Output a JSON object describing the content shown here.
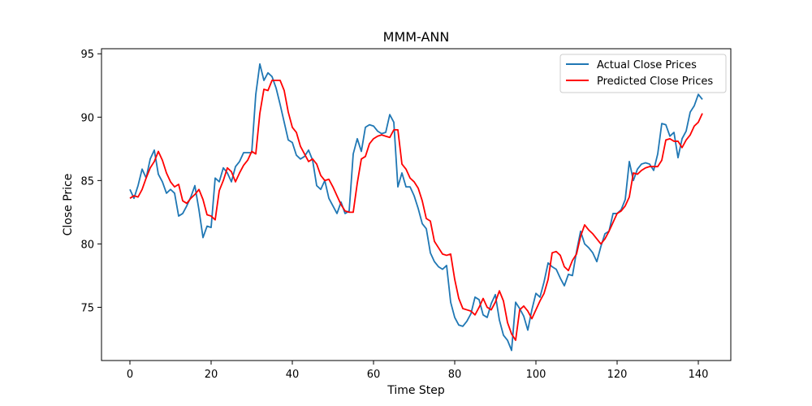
{
  "chart_data": {
    "type": "line",
    "title": "MMM-ANN",
    "xlabel": "Time Step",
    "ylabel": "Close Price",
    "xlim": [
      -7,
      148
    ],
    "ylim": [
      70.8,
      95.4
    ],
    "xticks": [
      0,
      20,
      40,
      60,
      80,
      100,
      120,
      140
    ],
    "yticks": [
      75,
      80,
      85,
      90,
      95
    ],
    "grid": false,
    "legend_position": "top-right",
    "colors": {
      "actual": "#1f77b4",
      "predicted": "#ff0000"
    },
    "x": [
      0,
      1,
      2,
      3,
      4,
      5,
      6,
      7,
      8,
      9,
      10,
      11,
      12,
      13,
      14,
      15,
      16,
      17,
      18,
      19,
      20,
      21,
      22,
      23,
      24,
      25,
      26,
      27,
      28,
      29,
      30,
      31,
      32,
      33,
      34,
      35,
      36,
      37,
      38,
      39,
      40,
      41,
      42,
      43,
      44,
      45,
      46,
      47,
      48,
      49,
      50,
      51,
      52,
      53,
      54,
      55,
      56,
      57,
      58,
      59,
      60,
      61,
      62,
      63,
      64,
      65,
      66,
      67,
      68,
      69,
      70,
      71,
      72,
      73,
      74,
      75,
      76,
      77,
      78,
      79,
      80,
      81,
      82,
      83,
      84,
      85,
      86,
      87,
      88,
      89,
      90,
      91,
      92,
      93,
      94,
      95,
      96,
      97,
      98,
      99,
      100,
      101,
      102,
      103,
      104,
      105,
      106,
      107,
      108,
      109,
      110,
      111,
      112,
      113,
      114,
      115,
      116,
      117,
      118,
      119,
      120,
      121,
      122,
      123,
      124,
      125,
      126,
      127,
      128,
      129,
      130,
      131,
      132,
      133,
      134,
      135,
      136,
      137,
      138,
      139,
      140,
      141
    ],
    "series": [
      {
        "name": "Actual Close Prices",
        "color": "#1f77b4",
        "values": [
          84.3,
          83.6,
          84.6,
          85.9,
          85.2,
          86.7,
          87.4,
          85.5,
          84.9,
          84.0,
          84.3,
          84.0,
          82.2,
          82.4,
          83.0,
          83.7,
          84.6,
          82.7,
          80.5,
          81.4,
          81.3,
          85.2,
          84.9,
          86.0,
          85.6,
          84.9,
          86.1,
          86.5,
          87.2,
          87.2,
          87.2,
          91.8,
          94.2,
          92.9,
          93.5,
          93.2,
          92.3,
          91.0,
          89.6,
          88.2,
          88.0,
          87.0,
          86.7,
          86.9,
          87.4,
          86.6,
          84.6,
          84.3,
          85.0,
          83.6,
          83.0,
          82.4,
          83.3,
          82.4,
          82.6,
          87.1,
          88.3,
          87.3,
          89.2,
          89.4,
          89.3,
          88.9,
          88.7,
          88.8,
          90.2,
          89.6,
          84.5,
          85.6,
          84.5,
          84.5,
          83.8,
          82.8,
          81.6,
          81.2,
          79.3,
          78.6,
          78.2,
          78.0,
          78.3,
          75.4,
          74.2,
          73.6,
          73.5,
          73.9,
          74.5,
          75.8,
          75.6,
          74.4,
          74.2,
          75.3,
          76.0,
          74.0,
          72.8,
          72.4,
          71.6,
          75.4,
          74.9,
          74.3,
          73.2,
          74.8,
          76.1,
          75.8,
          77.0,
          78.5,
          78.2,
          78.0,
          77.3,
          76.7,
          77.6,
          77.5,
          79.4,
          81.0,
          80.0,
          79.7,
          79.3,
          78.6,
          79.8,
          80.8,
          81.0,
          82.4,
          82.4,
          82.7,
          83.5,
          86.5,
          85.0,
          85.9,
          86.3,
          86.4,
          86.3,
          85.8,
          87.1,
          89.5,
          89.4,
          88.5,
          88.8,
          86.8,
          88.3,
          88.9,
          90.4,
          90.9,
          91.8,
          91.4
        ]
      },
      {
        "name": "Predicted Close Prices",
        "color": "#ff0000",
        "values": [
          83.6,
          83.8,
          83.7,
          84.3,
          85.2,
          86.0,
          86.5,
          87.3,
          86.6,
          85.6,
          84.9,
          84.5,
          84.7,
          83.4,
          83.2,
          83.6,
          83.9,
          84.3,
          83.5,
          82.3,
          82.2,
          81.9,
          84.2,
          85.0,
          86.0,
          85.7,
          84.9,
          85.6,
          86.2,
          86.6,
          87.3,
          87.1,
          90.3,
          92.2,
          92.1,
          92.9,
          92.9,
          92.9,
          92.1,
          90.4,
          89.2,
          88.8,
          87.7,
          87.1,
          86.5,
          86.7,
          86.3,
          85.4,
          85.0,
          85.1,
          84.5,
          83.8,
          83.1,
          82.6,
          82.5,
          82.5,
          84.8,
          86.7,
          86.9,
          87.9,
          88.3,
          88.5,
          88.6,
          88.5,
          88.4,
          89.0,
          89.0,
          86.3,
          85.9,
          85.2,
          84.9,
          84.4,
          83.4,
          82.0,
          81.8,
          80.2,
          79.7,
          79.2,
          79.1,
          79.2,
          77.2,
          75.7,
          74.9,
          74.8,
          74.7,
          74.4,
          75.0,
          75.7,
          75.0,
          74.8,
          75.4,
          76.3,
          75.5,
          73.8,
          72.9,
          72.4,
          74.8,
          75.1,
          74.7,
          74.1,
          74.8,
          75.5,
          76.1,
          77.2,
          79.3,
          79.4,
          79.1,
          78.2,
          77.9,
          78.7,
          79.2,
          80.6,
          81.5,
          81.1,
          80.8,
          80.4,
          80.0,
          80.4,
          81.0,
          81.7,
          82.4,
          82.6,
          83.0,
          83.7,
          85.6,
          85.5,
          85.8,
          86.0,
          86.1,
          86.1,
          86.1,
          86.6,
          88.2,
          88.3,
          88.1,
          88.1,
          87.6,
          88.2,
          88.6,
          89.3,
          89.6,
          90.3
        ]
      }
    ]
  }
}
